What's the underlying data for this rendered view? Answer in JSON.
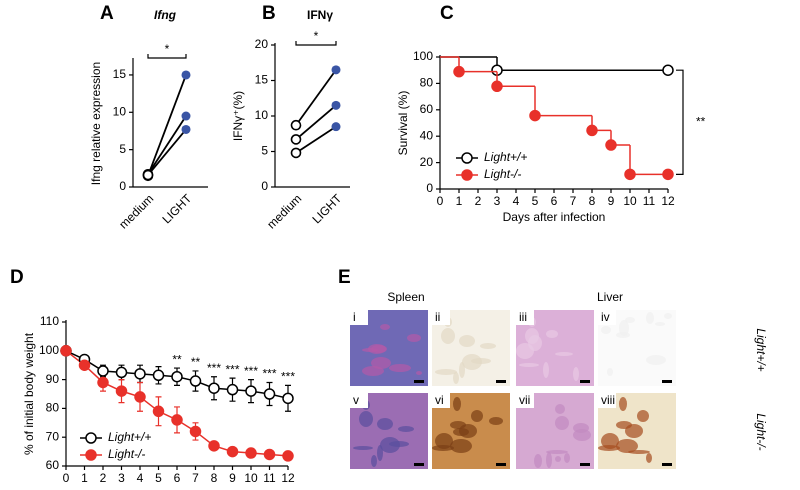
{
  "chart_data": [
    {
      "type": "paired",
      "panel": "A",
      "title": "Ifng",
      "ylabel": "Ifng relative expression",
      "categories": [
        "medium",
        "LIGHT"
      ],
      "color": "#3a55a5",
      "pairs": [
        [
          1.5,
          15
        ],
        [
          1.7,
          9.5
        ],
        [
          1.6,
          7.7
        ]
      ],
      "ylim": [
        0,
        17
      ],
      "yticks": [
        0,
        5,
        10,
        15
      ],
      "annotation": "*"
    },
    {
      "type": "paired",
      "panel": "B",
      "title": "IFNγ",
      "ylabel": "IFNγ⁺(%)",
      "categories": [
        "medium",
        "LIGHT"
      ],
      "color": "#3a55a5",
      "pairs": [
        [
          8.7,
          16.5
        ],
        [
          6.7,
          11.5
        ],
        [
          4.8,
          8.5
        ]
      ],
      "ylim": [
        0,
        20
      ],
      "yticks": [
        0,
        5,
        10,
        15,
        20
      ],
      "annotation": "*"
    },
    {
      "type": "step",
      "panel": "C",
      "xlabel": "Days after infection",
      "ylabel": "Survival (%)",
      "series": [
        {
          "name": "Light+/+",
          "color": "#000000",
          "open": true,
          "x": [
            0,
            3,
            12
          ],
          "values": [
            100,
            90,
            90
          ]
        },
        {
          "name": "Light-/-",
          "color": "#e8312a",
          "open": false,
          "x": [
            0,
            1,
            3,
            5,
            8,
            9,
            10,
            12
          ],
          "values": [
            100,
            88.9,
            77.8,
            55.6,
            44.4,
            33.3,
            11.1,
            11.1
          ]
        }
      ],
      "xlim": [
        0,
        12
      ],
      "xticks": [
        0,
        1,
        2,
        3,
        4,
        5,
        6,
        7,
        8,
        9,
        10,
        11,
        12
      ],
      "ylim": [
        0,
        100
      ],
      "yticks": [
        0,
        20,
        40,
        60,
        80,
        100
      ],
      "annotation": "**"
    },
    {
      "type": "line",
      "panel": "D",
      "ylabel": "% of initial body weight",
      "x": [
        0,
        1,
        2,
        3,
        4,
        5,
        6,
        7,
        8,
        9,
        10,
        11,
        12
      ],
      "series": [
        {
          "name": "Light+/+",
          "color": "#000000",
          "open": true,
          "values": [
            100,
            97,
            93,
            92.5,
            92,
            91.5,
            91,
            89.5,
            87,
            86.5,
            86,
            85,
            83.5
          ],
          "errors": [
            0,
            1,
            2,
            2.5,
            3,
            3,
            3,
            3.5,
            4,
            4,
            4,
            4,
            4.5
          ]
        },
        {
          "name": "Light-/-",
          "color": "#e8312a",
          "open": false,
          "values": [
            100,
            95,
            89,
            86,
            84,
            79,
            76,
            72,
            67,
            65,
            64.5,
            64,
            63.5
          ],
          "errors": [
            0,
            1,
            3,
            4,
            5,
            5,
            4.5,
            3,
            1,
            0.5,
            0.5,
            0.5,
            0.5
          ]
        }
      ],
      "annotations": [
        {
          "x": 6,
          "text": "**"
        },
        {
          "x": 7,
          "text": "**"
        },
        {
          "x": 8,
          "text": "***"
        },
        {
          "x": 9,
          "text": "***"
        },
        {
          "x": 10,
          "text": "***"
        },
        {
          "x": 11,
          "text": "***"
        },
        {
          "x": 12,
          "text": "***"
        }
      ],
      "xlim": [
        0,
        12
      ],
      "xticks": [
        0,
        1,
        2,
        3,
        4,
        5,
        6,
        7,
        8,
        9,
        10,
        11,
        12
      ],
      "ylim": [
        60,
        110
      ],
      "yticks": [
        60,
        70,
        80,
        90,
        100,
        110
      ]
    }
  ],
  "panel_e": {
    "panel": "E",
    "columns": [
      "Spleen",
      "Liver"
    ],
    "images": [
      "i",
      "ii",
      "iii",
      "iv",
      "v",
      "vi",
      "vii",
      "viii"
    ],
    "rows": [
      "Light+/+",
      "Light-/-"
    ]
  }
}
